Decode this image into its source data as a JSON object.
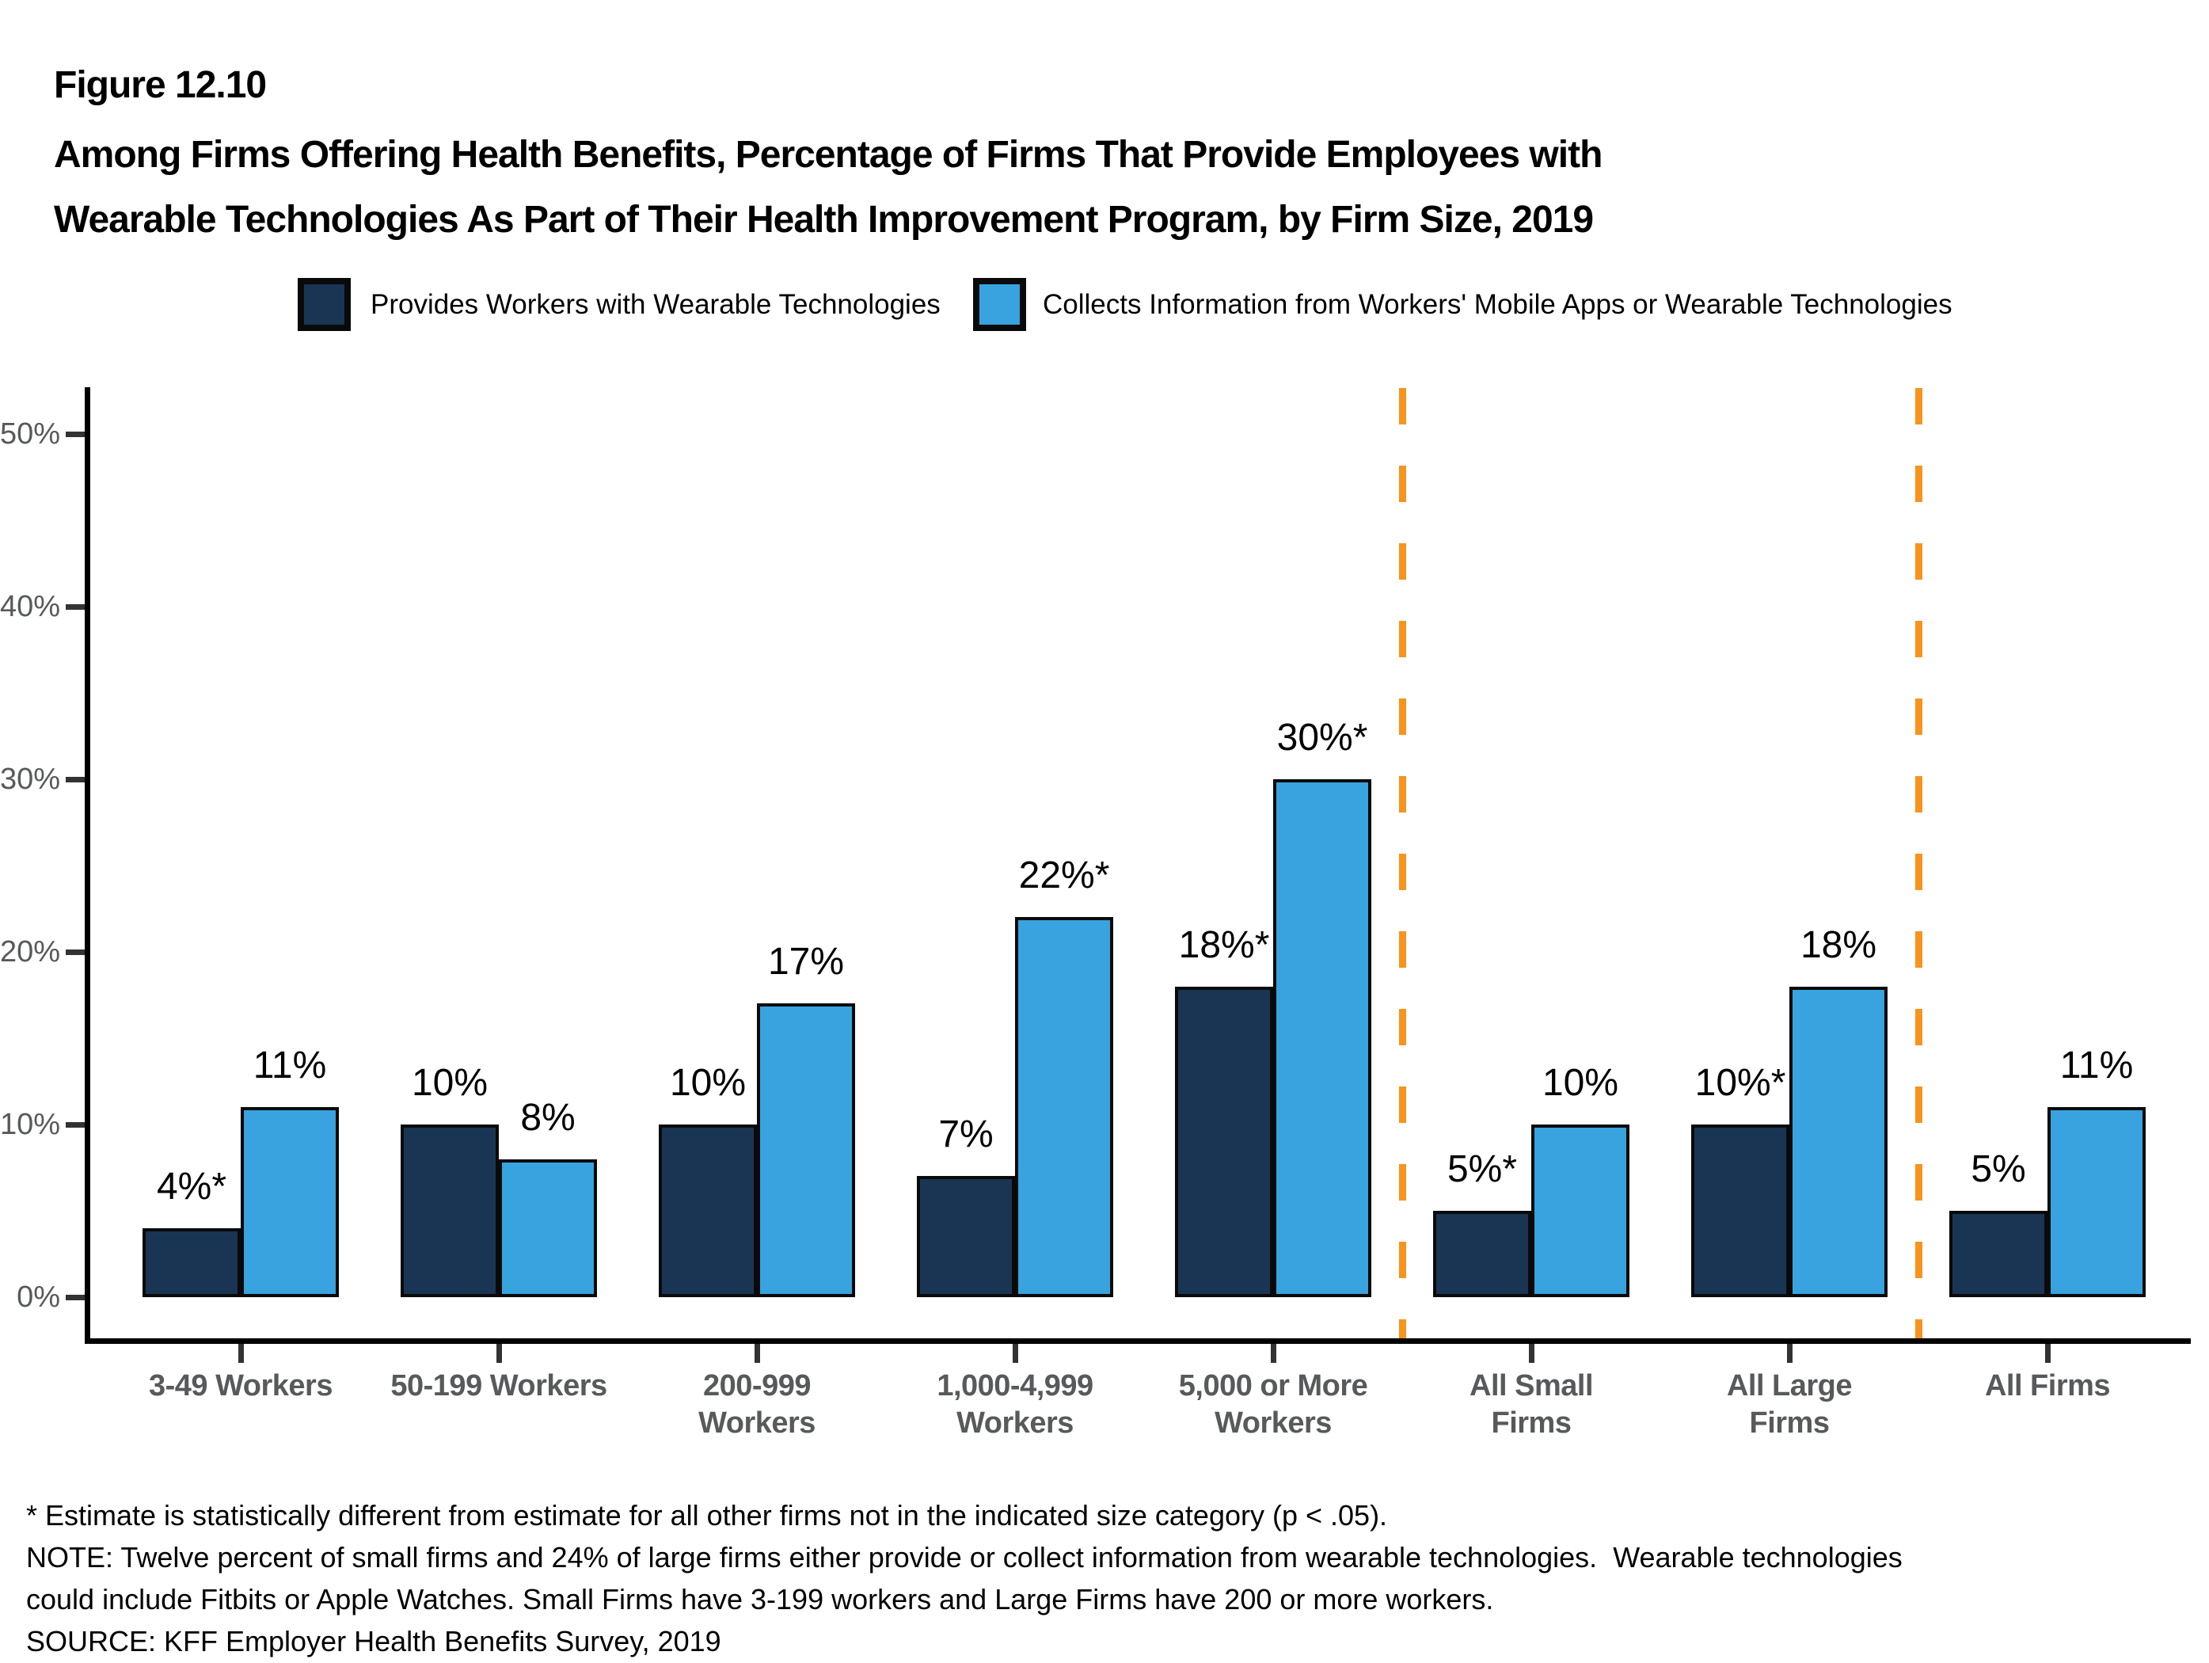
{
  "figure_label": "Figure 12.10",
  "title": {
    "line1": "Among Firms Offering Health Benefits, Percentage of Firms That Provide Employees with",
    "line2": "Wearable Technologies As Part of Their Health Improvement Program, by Firm Size, 2019"
  },
  "legend": [
    {
      "label": "Provides Workers with Wearable Technologies",
      "color": "#1A3554"
    },
    {
      "label": "Collects Information from Workers' Mobile Apps or Wearable Technologies",
      "color": "#38A3DE"
    }
  ],
  "chart_data": {
    "type": "bar",
    "title": "Among Firms Offering Health Benefits, Percentage of Firms That Provide Employees with Wearable Technologies As Part of Their Health Improvement Program, by Firm Size, 2019",
    "categories": [
      "3-49 Workers",
      "50-199 Workers",
      "200-999 Workers",
      "1,000-4,999 Workers",
      "5,000 or More Workers",
      "All Small Firms",
      "All Large Firms",
      "All Firms"
    ],
    "category_label_lines": [
      [
        "3-49 Workers"
      ],
      [
        "50-199 Workers"
      ],
      [
        "200-999",
        "Workers"
      ],
      [
        "1,000-4,999",
        "Workers"
      ],
      [
        "5,000 or More",
        "Workers"
      ],
      [
        "All Small",
        "Firms"
      ],
      [
        "All Large",
        "Firms"
      ],
      [
        "All Firms"
      ]
    ],
    "series": [
      {
        "name": "Provides Workers with Wearable Technologies",
        "color": "#1A3554",
        "values": [
          4,
          10,
          10,
          7,
          18,
          5,
          10,
          5
        ],
        "data_labels": [
          "4%*",
          "10%",
          "10%",
          "7%",
          "18%*",
          "5%*",
          "10%*",
          "5%"
        ]
      },
      {
        "name": "Collects Information from Workers' Mobile Apps or Wearable Technologies",
        "color": "#38A3DE",
        "values": [
          11,
          8,
          17,
          22,
          30,
          10,
          18,
          11
        ],
        "data_labels": [
          "11%",
          "8%",
          "17%",
          "22%*",
          "30%*",
          "10%",
          "18%",
          "11%"
        ]
      }
    ],
    "ylabel": "",
    "xlabel": "",
    "ylim": [
      0,
      52
    ],
    "yticks": [
      0,
      10,
      20,
      30,
      40,
      50
    ],
    "ytick_labels": [
      "0%",
      "10%",
      "20%",
      "30%",
      "40%",
      "50%"
    ],
    "grid": false,
    "legend_position": "top",
    "separators_after_category_index": [
      4,
      6
    ],
    "separator_color": "#F7941D",
    "separator_style": "dashed"
  },
  "footnotes": [
    "* Estimate is statistically different from estimate for all other firms not in the indicated size category (p < .05).",
    "NOTE: Twelve percent of small firms and 24% of large firms either provide or collect information from wearable technologies.  Wearable technologies",
    "could include Fitbits or Apple Watches. Small Firms have 3-199 workers and Large Firms have 200 or more workers.",
    "SOURCE: KFF Employer Health Benefits Survey, 2019"
  ]
}
